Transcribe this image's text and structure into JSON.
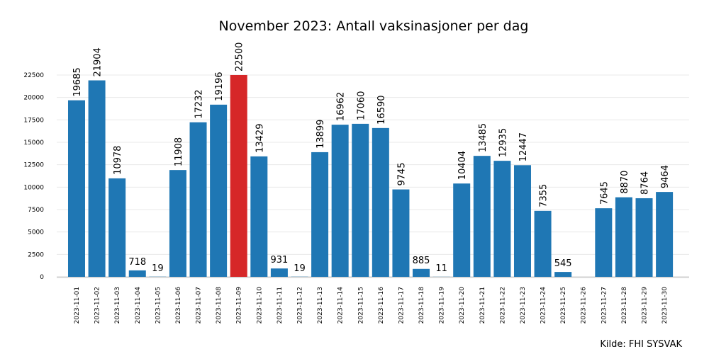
{
  "chart_data": {
    "type": "bar",
    "title": "November 2023: Antall vaksinasjoner per dag",
    "source": "Kilde: FHI SYSVAK",
    "categories": [
      "2023-11-01",
      "2023-11-02",
      "2023-11-03",
      "2023-11-04",
      "2023-11-05",
      "2023-11-06",
      "2023-11-07",
      "2023-11-08",
      "2023-11-09",
      "2023-11-10",
      "2023-11-11",
      "2023-11-12",
      "2023-11-13",
      "2023-11-14",
      "2023-11-15",
      "2023-11-16",
      "2023-11-17",
      "2023-11-18",
      "2023-11-19",
      "2023-11-20",
      "2023-11-21",
      "2023-11-22",
      "2023-11-23",
      "2023-11-24",
      "2023-11-25",
      "2023-11-26",
      "2023-11-27",
      "2023-11-28",
      "2023-11-29",
      "2023-11-30"
    ],
    "values": [
      19685,
      21904,
      10978,
      718,
      19,
      11908,
      17232,
      19196,
      22500,
      13429,
      931,
      19,
      13899,
      16962,
      17060,
      16590,
      9745,
      885,
      11,
      10404,
      13485,
      12935,
      12447,
      7355,
      545,
      null,
      7645,
      8870,
      8764,
      9464
    ],
    "colors": [
      "#1f77b4",
      "#1f77b4",
      "#1f77b4",
      "#1f77b4",
      "#1f77b4",
      "#1f77b4",
      "#1f77b4",
      "#1f77b4",
      "#d62728",
      "#1f77b4",
      "#1f77b4",
      "#1f77b4",
      "#1f77b4",
      "#1f77b4",
      "#1f77b4",
      "#1f77b4",
      "#1f77b4",
      "#1f77b4",
      "#1f77b4",
      "#1f77b4",
      "#1f77b4",
      "#1f77b4",
      "#1f77b4",
      "#1f77b4",
      "#1f77b4",
      "#1f77b4",
      "#1f77b4",
      "#1f77b4",
      "#1f77b4",
      "#1f77b4"
    ],
    "ylim": [
      0,
      25000
    ],
    "yticks": [
      0,
      2500,
      5000,
      7500,
      10000,
      12500,
      15000,
      17500,
      20000,
      22500
    ],
    "grid": true
  }
}
